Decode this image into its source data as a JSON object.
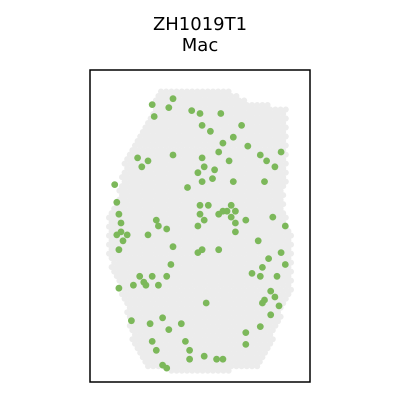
{
  "chart_data": {
    "type": "scatter",
    "title": "ZH1019T1",
    "subtitle": "Mac",
    "xlabel": "",
    "ylabel": "",
    "axes_visible": false,
    "legend": "none",
    "colors": {
      "background_spot": "#ececec",
      "highlight_spot": "#7cb85a",
      "frame": "#000000"
    },
    "tissue_outline": [
      [
        0.3,
        0.04
      ],
      [
        0.62,
        0.04
      ],
      [
        0.75,
        0.08
      ],
      [
        0.92,
        0.1
      ],
      [
        0.91,
        0.45
      ],
      [
        0.95,
        0.55
      ],
      [
        0.94,
        0.72
      ],
      [
        0.88,
        0.82
      ],
      [
        0.84,
        0.92
      ],
      [
        0.78,
        0.98
      ],
      [
        0.5,
        1.0
      ],
      [
        0.25,
        0.98
      ],
      [
        0.18,
        0.9
      ],
      [
        0.15,
        0.8
      ],
      [
        0.1,
        0.68
      ],
      [
        0.06,
        0.62
      ],
      [
        0.06,
        0.45
      ],
      [
        0.1,
        0.4
      ],
      [
        0.14,
        0.28
      ],
      [
        0.18,
        0.22
      ],
      [
        0.22,
        0.16
      ],
      [
        0.27,
        0.1
      ]
    ],
    "highlighted_spots": [
      [
        0.27,
        0.09
      ],
      [
        0.37,
        0.07
      ],
      [
        0.5,
        0.12
      ],
      [
        0.35,
        0.1
      ],
      [
        0.46,
        0.11
      ],
      [
        0.6,
        0.12
      ],
      [
        0.28,
        0.13
      ],
      [
        0.51,
        0.16
      ],
      [
        0.7,
        0.16
      ],
      [
        0.55,
        0.18
      ],
      [
        0.66,
        0.2
      ],
      [
        0.73,
        0.23
      ],
      [
        0.61,
        0.22
      ],
      [
        0.59,
        0.25
      ],
      [
        0.89,
        0.25
      ],
      [
        0.64,
        0.28
      ],
      [
        0.79,
        0.26
      ],
      [
        0.51,
        0.27
      ],
      [
        0.2,
        0.27
      ],
      [
        0.82,
        0.28
      ],
      [
        0.52,
        0.3
      ],
      [
        0.25,
        0.28
      ],
      [
        0.22,
        0.3
      ],
      [
        0.37,
        0.26
      ],
      [
        0.49,
        0.32
      ],
      [
        0.57,
        0.31
      ],
      [
        0.66,
        0.35
      ],
      [
        0.56,
        0.34
      ],
      [
        0.86,
        0.3
      ],
      [
        0.81,
        0.35
      ],
      [
        0.51,
        0.35
      ],
      [
        0.44,
        0.37
      ],
      [
        0.09,
        0.36
      ],
      [
        0.1,
        0.42
      ],
      [
        0.54,
        0.43
      ],
      [
        0.59,
        0.46
      ],
      [
        0.61,
        0.45
      ],
      [
        0.63,
        0.45
      ],
      [
        0.65,
        0.43
      ],
      [
        0.67,
        0.45
      ],
      [
        0.65,
        0.47
      ],
      [
        0.67,
        0.49
      ],
      [
        0.72,
        0.48
      ],
      [
        0.85,
        0.47
      ],
      [
        0.91,
        0.5
      ],
      [
        0.11,
        0.46
      ],
      [
        0.12,
        0.49
      ],
      [
        0.12,
        0.52
      ],
      [
        0.13,
        0.55
      ],
      [
        0.1,
        0.53
      ],
      [
        0.11,
        0.58
      ],
      [
        0.15,
        0.53
      ],
      [
        0.5,
        0.43
      ],
      [
        0.5,
        0.46
      ],
      [
        0.52,
        0.48
      ],
      [
        0.49,
        0.5
      ],
      [
        0.25,
        0.53
      ],
      [
        0.29,
        0.48
      ],
      [
        0.3,
        0.5
      ],
      [
        0.34,
        0.51
      ],
      [
        0.67,
        0.52
      ],
      [
        0.78,
        0.55
      ],
      [
        0.49,
        0.59
      ],
      [
        0.51,
        0.58
      ],
      [
        0.37,
        0.57
      ],
      [
        0.59,
        0.58
      ],
      [
        0.89,
        0.59
      ],
      [
        0.83,
        0.61
      ],
      [
        0.91,
        0.63
      ],
      [
        0.8,
        0.64
      ],
      [
        0.79,
        0.67
      ],
      [
        0.75,
        0.66
      ],
      [
        0.87,
        0.67
      ],
      [
        0.36,
        0.63
      ],
      [
        0.34,
        0.67
      ],
      [
        0.23,
        0.69
      ],
      [
        0.21,
        0.67
      ],
      [
        0.24,
        0.7
      ],
      [
        0.27,
        0.67
      ],
      [
        0.18,
        0.7
      ],
      [
        0.3,
        0.7
      ],
      [
        0.84,
        0.72
      ],
      [
        0.86,
        0.74
      ],
      [
        0.11,
        0.71
      ],
      [
        0.81,
        0.75
      ],
      [
        0.8,
        0.76
      ],
      [
        0.88,
        0.77
      ],
      [
        0.53,
        0.76
      ],
      [
        0.84,
        0.8
      ],
      [
        0.26,
        0.83
      ],
      [
        0.32,
        0.81
      ],
      [
        0.35,
        0.85
      ],
      [
        0.41,
        0.83
      ],
      [
        0.17,
        0.82
      ],
      [
        0.79,
        0.84
      ],
      [
        0.72,
        0.86
      ],
      [
        0.72,
        0.9
      ],
      [
        0.27,
        0.89
      ],
      [
        0.43,
        0.89
      ],
      [
        0.45,
        0.92
      ],
      [
        0.29,
        0.92
      ],
      [
        0.52,
        0.94
      ],
      [
        0.45,
        0.95
      ],
      [
        0.34,
        0.98
      ],
      [
        0.61,
        0.95
      ],
      [
        0.58,
        0.95
      ],
      [
        0.32,
        0.97
      ]
    ]
  }
}
